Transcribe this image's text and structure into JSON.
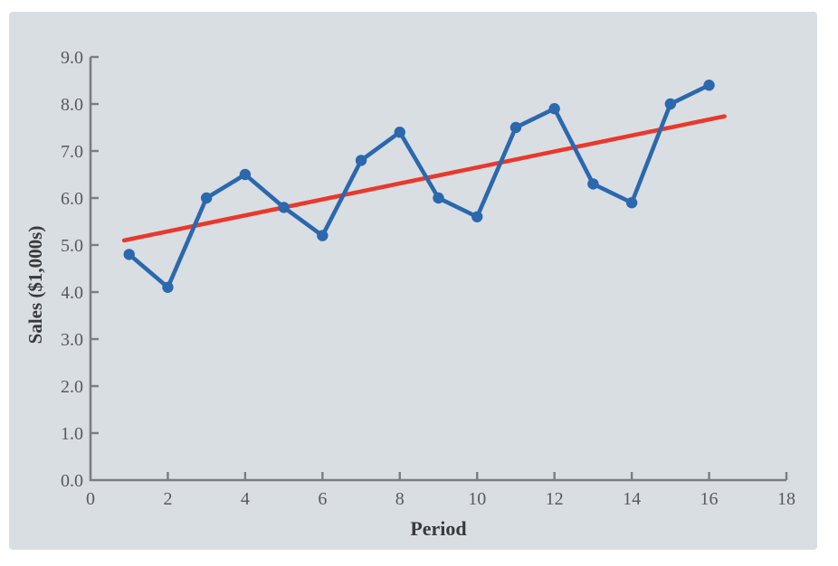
{
  "figure": {
    "description": "Time-series line chart of sales by period with fitted linear trend line"
  },
  "colors": {
    "page_background": "#ffffff",
    "panel_background": "#d9dee3",
    "series_blue": "#2b68ae",
    "trend_red": "#ea382c",
    "axis_gray": "#7b7d80",
    "tick_text": "#58595b",
    "title_text": "#38393b"
  },
  "chart_data": {
    "type": "line",
    "title": "",
    "xlabel": "Period",
    "ylabel": "Sales ($1,000s)",
    "xlim": [
      0,
      18
    ],
    "ylim": [
      0.0,
      9.0
    ],
    "grid": false,
    "legend": false,
    "x_ticks": [
      "0",
      "2",
      "4",
      "6",
      "8",
      "10",
      "12",
      "14",
      "16",
      "18"
    ],
    "x_tick_values": [
      0,
      2,
      4,
      6,
      8,
      10,
      12,
      14,
      16,
      18
    ],
    "y_ticks": [
      "0.0",
      "1.0",
      "2.0",
      "3.0",
      "4.0",
      "5.0",
      "6.0",
      "7.0",
      "8.0",
      "9.0"
    ],
    "y_tick_values": [
      0,
      1,
      2,
      3,
      4,
      5,
      6,
      7,
      8,
      9
    ],
    "x": [
      1,
      2,
      3,
      4,
      5,
      6,
      7,
      8,
      9,
      10,
      11,
      12,
      13,
      14,
      15,
      16
    ],
    "series": [
      {
        "name": "Sales",
        "values": [
          4.8,
          4.1,
          6.0,
          6.5,
          5.8,
          5.2,
          6.8,
          7.4,
          6.0,
          5.6,
          7.5,
          7.9,
          6.3,
          5.9,
          8.0,
          8.4
        ],
        "marker": "circle",
        "color_key": "series_blue"
      }
    ],
    "trend_line": {
      "name": "Linear trend (least squares)",
      "slope": 0.17,
      "intercept": 4.95,
      "x_start": 0.87,
      "x_end": 16.4,
      "color_key": "trend_red"
    }
  }
}
